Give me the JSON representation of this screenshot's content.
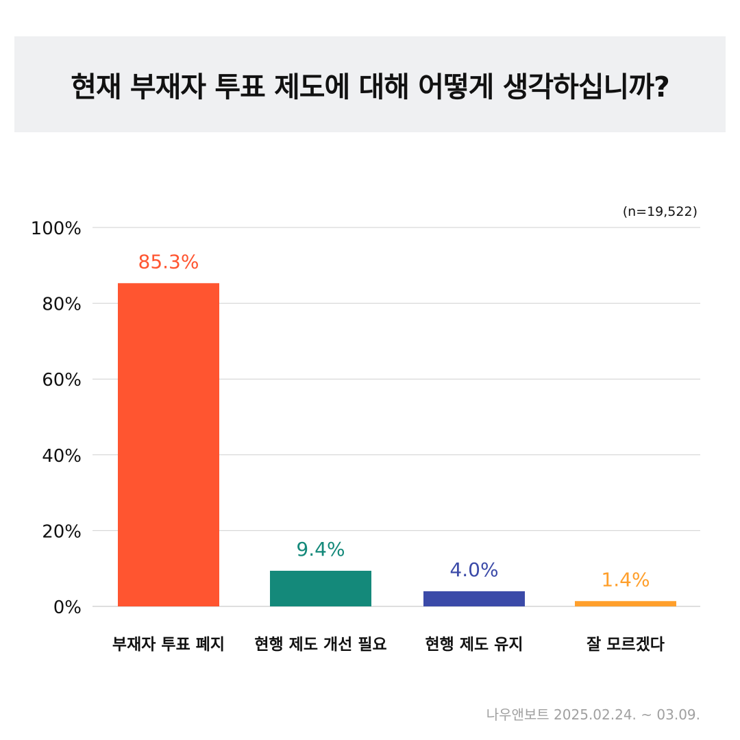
{
  "title": "현재 부재자 투표 제도에 대해 어떻게 생각하십니까?",
  "sample_size": "(n=19,522)",
  "source": "나우앤보트 2025.02.24. ~ 03.09.",
  "chart_data": {
    "type": "bar",
    "categories": [
      "부재자 투표 폐지",
      "현행 제도 개선 필요",
      "현행 제도 유지",
      "잘 모르겠다"
    ],
    "values": [
      85.3,
      9.4,
      4.0,
      1.4
    ],
    "value_labels": [
      "85.3%",
      "9.4%",
      "4.0%",
      "1.4%"
    ],
    "colors": [
      "#ff5530",
      "#14897a",
      "#3b4aa8",
      "#ff9f2b"
    ],
    "ylim": [
      0,
      100
    ],
    "yticks": [
      0,
      20,
      40,
      60,
      80,
      100
    ],
    "ytick_labels": [
      "0%",
      "20%",
      "40%",
      "60%",
      "80%",
      "100%"
    ],
    "grid": true
  }
}
